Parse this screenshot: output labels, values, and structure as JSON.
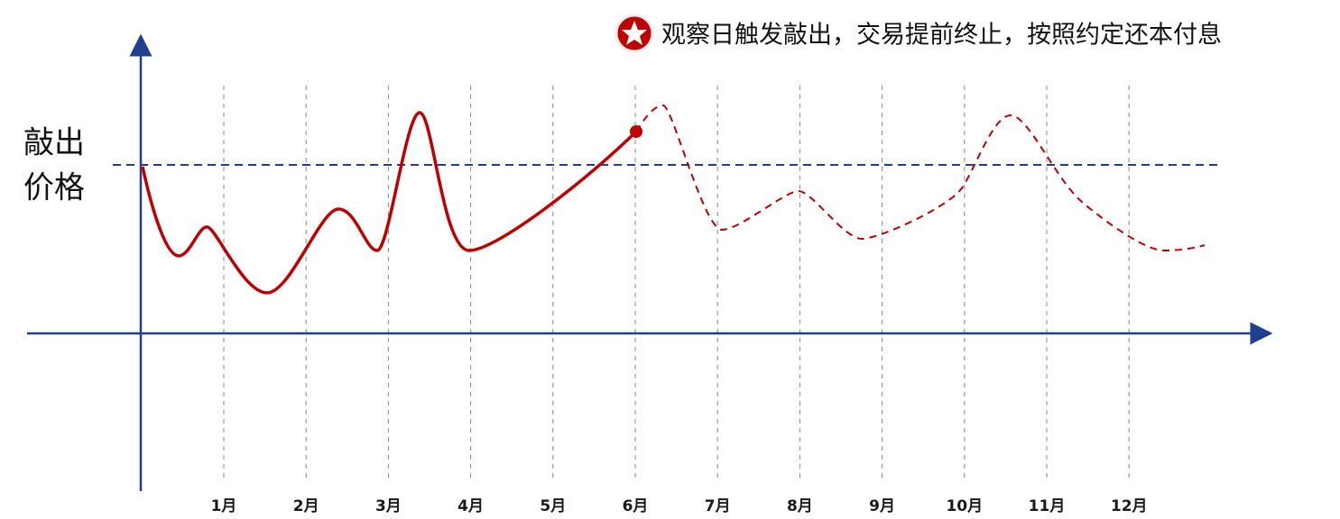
{
  "annotation": "观察日触发敲出，交易提前终止，按照约定还本付息",
  "knock_out_label": {
    "line1": "敲出",
    "line2": "价格"
  },
  "months": [
    "1月",
    "2月",
    "3月",
    "4月",
    "5月",
    "6月",
    "7月",
    "8月",
    "9月",
    "10月",
    "11月",
    "12月"
  ]
}
